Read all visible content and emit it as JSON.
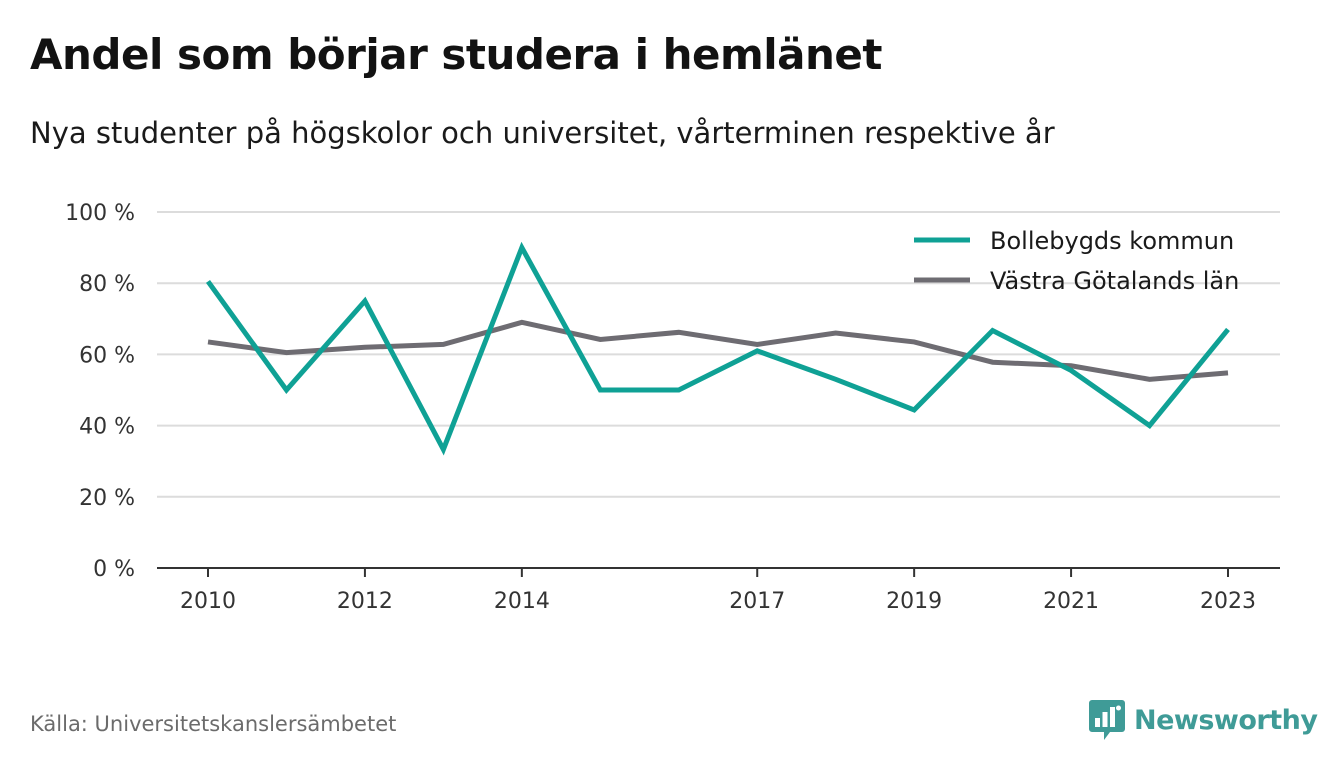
{
  "header": {
    "title": "Andel som börjar studera i hemlänet",
    "subtitle": "Nya studenter på högskolor och universitet, vårterminen respektive år"
  },
  "footer": {
    "source": "Källa: Universitetskanslersämbetet",
    "brand": "Newsworthy",
    "brand_icon": "bar-chart-speech-bubble-icon",
    "brand_color": "#3f9b97"
  },
  "chart_data": {
    "type": "line",
    "x": [
      2010,
      2011,
      2012,
      2013,
      2014,
      2015,
      2016,
      2017,
      2018,
      2019,
      2020,
      2021,
      2022,
      2023
    ],
    "x_tick_labels": [
      "2010",
      "2012",
      "2014",
      "2017",
      "2019",
      "2021",
      "2023"
    ],
    "x_ticks": [
      2010,
      2012,
      2014,
      2017,
      2019,
      2021,
      2023
    ],
    "y_ticks": [
      0,
      20,
      40,
      60,
      80,
      100
    ],
    "y_tick_labels": [
      "0 %",
      "20 %",
      "40 %",
      "60 %",
      "80 %",
      "100 %"
    ],
    "ylim": [
      0,
      100
    ],
    "grid": true,
    "legend_position": "top-right",
    "series": [
      {
        "name": "Bollebygds kommun",
        "color": "#0fa195",
        "values": [
          80.5,
          50,
          75,
          33.3,
          90,
          50,
          50,
          61,
          53,
          44.4,
          66.7,
          55.5,
          40,
          67
        ]
      },
      {
        "name": "Västra Götalands län",
        "color": "#6e6c72",
        "values": [
          63.5,
          60.5,
          62,
          62.8,
          69,
          64.2,
          66.2,
          62.8,
          66,
          63.5,
          57.8,
          56.8,
          53,
          54.8
        ]
      }
    ]
  }
}
